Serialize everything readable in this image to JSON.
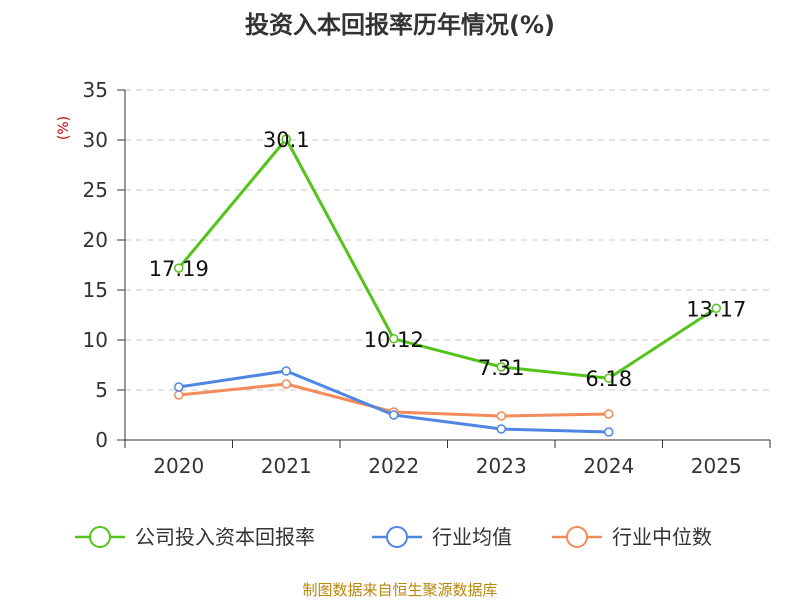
{
  "chart_data": {
    "type": "line",
    "title": "投资入本回报率历年情况(%)",
    "ylabel": "(%)",
    "xlabel": "",
    "categories": [
      "2020",
      "2021",
      "2022",
      "2023",
      "2024",
      "2025"
    ],
    "ylim": [
      0,
      35
    ],
    "yticks": [
      "0",
      "5",
      "10",
      "15",
      "20",
      "25",
      "30",
      "35"
    ],
    "grid": true,
    "legend_position": "bottom",
    "series": [
      {
        "name": "公司投入资本回报率",
        "color": "#52c41a",
        "values": [
          17.19,
          30.1,
          10.12,
          7.31,
          6.18,
          13.17
        ],
        "labels": [
          "17.19",
          "30.1",
          "10.12",
          "7.31",
          "6.18",
          "13.17"
        ]
      },
      {
        "name": "行业均值",
        "color": "#4f86e3",
        "values": [
          5.3,
          6.9,
          2.5,
          1.1,
          0.8,
          null
        ]
      },
      {
        "name": "行业中位数",
        "color": "#f38b5a",
        "values": [
          4.5,
          5.6,
          2.8,
          2.4,
          2.6,
          null
        ]
      }
    ],
    "source": "制图数据来自恒生聚源数据库"
  }
}
